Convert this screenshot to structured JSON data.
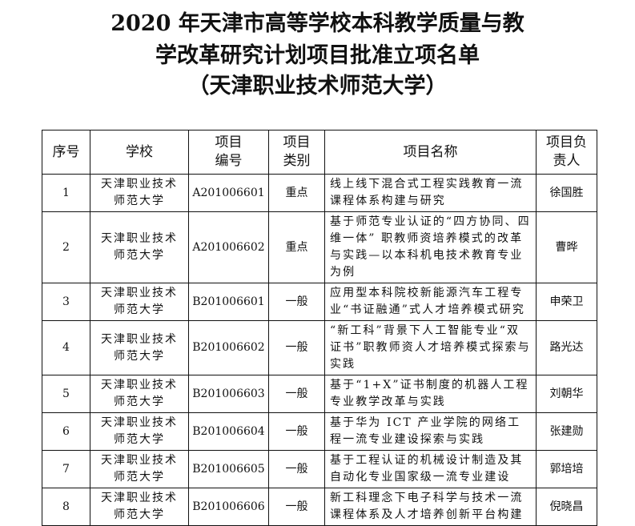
{
  "title": {
    "line1": "2020 年天津市高等学校本科教学质量与教",
    "line2": "学改革研究计划项目批准立项名单",
    "line3": "（天津职业技术师范大学）"
  },
  "table": {
    "headers": [
      "序号",
      "学校",
      "项目编号",
      "项目类别",
      "项目名称",
      "项目负责人"
    ],
    "rows": [
      {
        "no": "1",
        "school": "天津职业技术师范大学",
        "code": "A201006601",
        "type": "重点",
        "name": "线上线下混合式工程实践教育一流课程体系构建与研究",
        "leader": "徐国胜"
      },
      {
        "no": "2",
        "school": "天津职业技术师范大学",
        "code": "A201006602",
        "type": "重点",
        "name": "基于师范专业认证的“四方协同、四维一体” 职教师资培养模式的改革与实践—以本科机电技术教育专业为例",
        "leader": "曹晔"
      },
      {
        "no": "3",
        "school": "天津职业技术师范大学",
        "code": "B201006601",
        "type": "一般",
        "name": "应用型本科院校新能源汽车工程专业“书证融通”式人才培养模式研究",
        "leader": "申荣卫"
      },
      {
        "no": "4",
        "school": "天津职业技术师范大学",
        "code": "B201006602",
        "type": "一般",
        "name": "“新工科”背景下人工智能专业“双证书”职教师资人才培养模式探索与实践",
        "leader": "路光达"
      },
      {
        "no": "5",
        "school": "天津职业技术师范大学",
        "code": "B201006603",
        "type": "一般",
        "name": "基于“1+X”证书制度的机器人工程专业教学改革与实践",
        "leader": "刘朝华"
      },
      {
        "no": "6",
        "school": "天津职业技术师范大学",
        "code": "B201006604",
        "type": "一般",
        "name": "基于华为 ICT 产业学院的网络工程一流专业建设探索与实践",
        "leader": "张建勋"
      },
      {
        "no": "7",
        "school": "天津职业技术师范大学",
        "code": "B201006605",
        "type": "一般",
        "name": "基于工程认证的机械设计制造及其自动化专业国家级一流专业建设",
        "leader": "郭培培"
      },
      {
        "no": "8",
        "school": "天津职业技术师范大学",
        "code": "B201006606",
        "type": "一般",
        "name": "新工科理念下电子科学与技术一流课程体系及人才培养创新平台构建",
        "leader": "倪晓昌"
      }
    ]
  }
}
